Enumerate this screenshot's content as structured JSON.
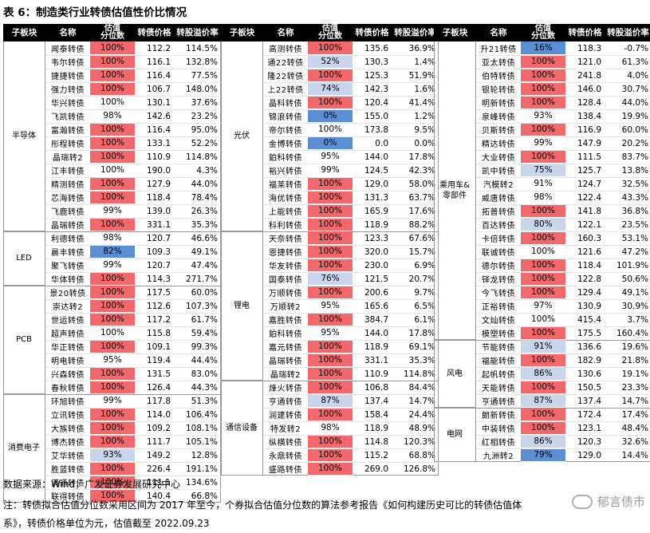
{
  "title": "表 6：制造类行业转债估值性价比情况",
  "headers": [
    "子板块",
    "名称",
    "估值\n分位数",
    "转债价格",
    "转股溢价率"
  ],
  "colors": {
    "high": "#f2686b",
    "mid": "#c9d5ec",
    "low": "#5b8fd4",
    "header_bg": "#000000"
  },
  "bands": [
    {
      "sectors": [
        {
          "name": "半导体",
          "rows": [
            {
              "name": "闻泰转债",
              "pct": "100%",
              "level": "high",
              "price": "112.2",
              "premium": "114.5%"
            },
            {
              "name": "韦尔转债",
              "pct": "100%",
              "level": "high",
              "price": "116.1",
              "premium": "132.8%"
            },
            {
              "name": "捷捷转债",
              "pct": "100%",
              "level": "high",
              "price": "116.4",
              "premium": "77.5%"
            },
            {
              "name": "强力转债",
              "pct": "100%",
              "level": "high",
              "price": "106.7",
              "premium": "148.0%"
            },
            {
              "name": "华兴转债",
              "pct": "100%",
              "level": "none",
              "price": "130.1",
              "premium": "37.6%"
            },
            {
              "name": "飞凯转债",
              "pct": "98%",
              "level": "none",
              "price": "142.6",
              "premium": "23.2%"
            },
            {
              "name": "富瀚转债",
              "pct": "100%",
              "level": "high",
              "price": "116.4",
              "premium": "95.0%"
            },
            {
              "name": "彤程转债",
              "pct": "100%",
              "level": "high",
              "price": "133.1",
              "premium": "52.2%"
            },
            {
              "name": "晶瑞转2",
              "pct": "100%",
              "level": "high",
              "price": "110.9",
              "premium": "114.8%"
            },
            {
              "name": "江丰转债",
              "pct": "100%",
              "level": "none",
              "price": "190.0",
              "premium": "4.3%"
            },
            {
              "name": "精测转债",
              "pct": "100%",
              "level": "high",
              "price": "127.9",
              "premium": "44.0%"
            },
            {
              "name": "芯海转债",
              "pct": "100%",
              "level": "high",
              "price": "118.4",
              "premium": "78.4%"
            },
            {
              "name": "飞鹿转债",
              "pct": "99%",
              "level": "none",
              "price": "139.0",
              "premium": "26.3%"
            },
            {
              "name": "晶瑞转债",
              "pct": "100%",
              "level": "high",
              "price": "331.1",
              "premium": "35.3%"
            }
          ]
        },
        {
          "name": "LED",
          "rows": [
            {
              "name": "利德转债",
              "pct": "98%",
              "level": "none",
              "price": "120.7",
              "premium": "46.6%"
            },
            {
              "name": "晨丰转债",
              "pct": "82%",
              "level": "low",
              "price": "109.3",
              "premium": "49.1%"
            },
            {
              "name": "聚飞转债",
              "pct": "99%",
              "level": "none",
              "price": "120.7",
              "premium": "47.4%"
            },
            {
              "name": "华体转债",
              "pct": "100%",
              "level": "high",
              "price": "114.3",
              "premium": "271.7%"
            }
          ]
        },
        {
          "name": "PCB",
          "rows": [
            {
              "name": "景20转债",
              "pct": "100%",
              "level": "high",
              "price": "117.5",
              "premium": "60.0%"
            },
            {
              "name": "崇达转2",
              "pct": "100%",
              "level": "high",
              "price": "112.6",
              "premium": "107.3%"
            },
            {
              "name": "世运转债",
              "pct": "100%",
              "level": "high",
              "price": "117.2",
              "premium": "61.7%"
            },
            {
              "name": "超声转债",
              "pct": "100%",
              "level": "none",
              "price": "115.8",
              "premium": "59.4%"
            },
            {
              "name": "华正转债",
              "pct": "100%",
              "level": "high",
              "price": "109.1",
              "premium": "99.3%"
            },
            {
              "name": "明电转债",
              "pct": "95%",
              "level": "none",
              "price": "119.4",
              "premium": "44.4%"
            },
            {
              "name": "兴森转债",
              "pct": "100%",
              "level": "high",
              "price": "131.5",
              "premium": "83.0%"
            },
            {
              "name": "春秋转债",
              "pct": "100%",
              "level": "high",
              "price": "126.4",
              "premium": "44.3%"
            }
          ]
        },
        {
          "name": "消费电子",
          "rows": [
            {
              "name": "环旭转债",
              "pct": "99%",
              "level": "none",
              "price": "117.8",
              "premium": "51.3%"
            },
            {
              "name": "立讯转债",
              "pct": "100%",
              "level": "high",
              "price": "114.0",
              "premium": "106.4%"
            },
            {
              "name": "大族转债",
              "pct": "100%",
              "level": "high",
              "price": "109.2",
              "premium": "108.1%"
            },
            {
              "name": "博杰转债",
              "pct": "100%",
              "level": "high",
              "price": "111.7",
              "premium": "105.1%"
            },
            {
              "name": "艾华转债",
              "pct": "93%",
              "level": "mid",
              "price": "149.2",
              "premium": "12.8%"
            },
            {
              "name": "胜蓝转债",
              "pct": "100%",
              "level": "high",
              "price": "226.4",
              "premium": "191.1%"
            },
            {
              "name": "满通转债",
              "pct": "100%",
              "level": "high",
              "price": "111.1",
              "premium": "134.6%"
            },
            {
              "name": "联得转债",
              "pct": "100%",
              "level": "high",
              "price": "140.4",
              "premium": "66.8%"
            }
          ]
        }
      ]
    },
    {
      "sectors": [
        {
          "name": "光伏",
          "rows": [
            {
              "name": "高测转债",
              "pct": "100%",
              "level": "high",
              "price": "135.6",
              "premium": "36.9%"
            },
            {
              "name": "通22转债",
              "pct": "52%",
              "level": "mid",
              "price": "130.3",
              "premium": "1.4%"
            },
            {
              "name": "隆22转债",
              "pct": "100%",
              "level": "high",
              "price": "125.3",
              "premium": "51.9%"
            },
            {
              "name": "上22转债",
              "pct": "74%",
              "level": "mid",
              "price": "142.3",
              "premium": "1.6%"
            },
            {
              "name": "晶科转债",
              "pct": "100%",
              "level": "high",
              "price": "120.4",
              "premium": "41.4%"
            },
            {
              "name": "锦浪转债",
              "pct": "0%",
              "level": "low",
              "price": "155.0",
              "premium": "1.2%"
            },
            {
              "name": "帝尔转债",
              "pct": "100%",
              "level": "none",
              "price": "173.8",
              "premium": "9.5%"
            },
            {
              "name": "金博转债",
              "pct": "0%",
              "level": "low",
              "price": "0.0",
              "premium": "0.0%"
            },
            {
              "name": "鉑科转债",
              "pct": "95%",
              "level": "none",
              "price": "144.0",
              "premium": "17.8%"
            },
            {
              "name": "裕兴转债",
              "pct": "99%",
              "level": "none",
              "price": "124.5",
              "premium": "42.3%"
            },
            {
              "name": "福莱转债",
              "pct": "100%",
              "level": "high",
              "price": "129.0",
              "premium": "58.0%"
            },
            {
              "name": "海优转债",
              "pct": "100%",
              "level": "high",
              "price": "131.3",
              "premium": "63.7%"
            },
            {
              "name": "上能转债",
              "pct": "100%",
              "level": "high",
              "price": "165.9",
              "premium": "17.6%"
            },
            {
              "name": "科利转债",
              "pct": "100%",
              "level": "high",
              "price": "118.9",
              "premium": "88.2%"
            }
          ]
        },
        {
          "name": "锂电",
          "rows": [
            {
              "name": "天奈转债",
              "pct": "100%",
              "level": "high",
              "price": "123.3",
              "premium": "67.6%"
            },
            {
              "name": "恩捷转债",
              "pct": "100%",
              "level": "high",
              "price": "320.0",
              "premium": "15.7%"
            },
            {
              "name": "华友转债",
              "pct": "100%",
              "level": "high",
              "price": "230.0",
              "premium": "6.9%"
            },
            {
              "name": "国泰转债",
              "pct": "76%",
              "level": "mid",
              "price": "121.5",
              "premium": "20.7%"
            },
            {
              "name": "万顺转债",
              "pct": "100%",
              "level": "high",
              "price": "200.6",
              "premium": "9.7%"
            },
            {
              "name": "万顺转2",
              "pct": "95%",
              "level": "none",
              "price": "165.6",
              "premium": "6.5%"
            },
            {
              "name": "嘉胜转债",
              "pct": "100%",
              "level": "high",
              "price": "384.7",
              "premium": "6.1%"
            },
            {
              "name": "鉑科转债",
              "pct": "95%",
              "level": "none",
              "price": "144.0",
              "premium": "17.8%"
            },
            {
              "name": "嘉元转债",
              "pct": "100%",
              "level": "high",
              "price": "118.9",
              "premium": "69.1%"
            },
            {
              "name": "晶瑞转债",
              "pct": "100%",
              "level": "high",
              "price": "331.1",
              "premium": "35.3%"
            },
            {
              "name": "晶瑞转2",
              "pct": "100%",
              "level": "high",
              "price": "110.9",
              "premium": "114.8%"
            }
          ]
        },
        {
          "name": "通信设备",
          "rows": [
            {
              "name": "烽火转债",
              "pct": "100%",
              "level": "high",
              "price": "106.8",
              "premium": "84.4%"
            },
            {
              "name": "亨通转债",
              "pct": "87%",
              "level": "mid",
              "price": "137.4",
              "premium": "14.7%"
            },
            {
              "name": "润建转债",
              "pct": "100%",
              "level": "high",
              "price": "158.4",
              "premium": "24.4%"
            },
            {
              "name": "特发转2",
              "pct": "98%",
              "level": "none",
              "price": "118.9",
              "premium": "48.9%"
            },
            {
              "name": "纵横转债",
              "pct": "100%",
              "level": "high",
              "price": "114.8",
              "premium": "120.3%"
            },
            {
              "name": "永鼎转债",
              "pct": "100%",
              "level": "high",
              "price": "115.2",
              "premium": "68.8%"
            },
            {
              "name": "盛路转债",
              "pct": "100%",
              "level": "high",
              "price": "269.0",
              "premium": "126.8%"
            }
          ]
        }
      ]
    },
    {
      "sectors": [
        {
          "name": "乘用车&\n零部件",
          "rows": [
            {
              "name": "升21转债",
              "pct": "16%",
              "level": "low",
              "price": "118.3",
              "premium": "-0.7%"
            },
            {
              "name": "亚太转债",
              "pct": "100%",
              "level": "high",
              "price": "121.0",
              "premium": "61.3%"
            },
            {
              "name": "伯特转债",
              "pct": "100%",
              "level": "high",
              "price": "241.8",
              "premium": "4.0%"
            },
            {
              "name": "银轮转债",
              "pct": "100%",
              "level": "high",
              "price": "146.0",
              "premium": "30.7%"
            },
            {
              "name": "明新转债",
              "pct": "100%",
              "level": "high",
              "price": "128.4",
              "premium": "44.0%"
            },
            {
              "name": "泉峰转债",
              "pct": "93%",
              "level": "none",
              "price": "138.4",
              "premium": "19.9%"
            },
            {
              "name": "贝斯转债",
              "pct": "100%",
              "level": "high",
              "price": "116.9",
              "premium": "60.0%"
            },
            {
              "name": "精达转债",
              "pct": "99%",
              "level": "none",
              "price": "147.9",
              "premium": "20.2%"
            },
            {
              "name": "大业转债",
              "pct": "100%",
              "level": "high",
              "price": "111.5",
              "premium": "83.7%"
            },
            {
              "name": "凯中转债",
              "pct": "75%",
              "level": "mid",
              "price": "125.7",
              "premium": "13.8%"
            },
            {
              "name": "汽模转2",
              "pct": "91%",
              "level": "none",
              "price": "124.7",
              "premium": "32.5%"
            },
            {
              "name": "威唐转债",
              "pct": "98%",
              "level": "none",
              "price": "122.4",
              "premium": "43.3%"
            },
            {
              "name": "拓普转债",
              "pct": "100%",
              "level": "high",
              "price": "141.8",
              "premium": "36.8%"
            },
            {
              "name": "百达转债",
              "pct": "80%",
              "level": "mid",
              "price": "122.1",
              "premium": "23.5%"
            },
            {
              "name": "卡倍转债",
              "pct": "100%",
              "level": "high",
              "price": "160.3",
              "premium": "53.1%"
            },
            {
              "name": "联诚转债",
              "pct": "100%",
              "level": "none",
              "price": "121.6",
              "premium": "47.2%"
            },
            {
              "name": "德尔转债",
              "pct": "100%",
              "level": "high",
              "price": "118.4",
              "premium": "101.9%"
            },
            {
              "name": "铎龙转债",
              "pct": "100%",
              "level": "high",
              "price": "122.8",
              "premium": "50.6%"
            },
            {
              "name": "今飞转债",
              "pct": "100%",
              "level": "high",
              "price": "129.4",
              "premium": "49.1%"
            },
            {
              "name": "正裕转债",
              "pct": "97%",
              "level": "none",
              "price": "130.9",
              "premium": "30.9%"
            },
            {
              "name": "文灿转债",
              "pct": "100%",
              "level": "none",
              "price": "415.4",
              "premium": "3.7%"
            },
            {
              "name": "模塑转债",
              "pct": "100%",
              "level": "high",
              "price": "175.5",
              "premium": "160.4%"
            }
          ]
        },
        {
          "name": "风电",
          "rows": [
            {
              "name": "节能转债",
              "pct": "91%",
              "level": "mid",
              "price": "136.6",
              "premium": "19.6%"
            },
            {
              "name": "福能转债",
              "pct": "100%",
              "level": "high",
              "price": "182.9",
              "premium": "21.8%"
            },
            {
              "name": "起帆转债",
              "pct": "86%",
              "level": "mid",
              "price": "130.6",
              "premium": "19.1%"
            },
            {
              "name": "天能转债",
              "pct": "100%",
              "level": "high",
              "price": "150.5",
              "premium": "23.3%"
            },
            {
              "name": "亨通转债",
              "pct": "87%",
              "level": "mid",
              "price": "137.4",
              "premium": "14.7%"
            }
          ]
        },
        {
          "name": "电网",
          "rows": [
            {
              "name": "朗新转债",
              "pct": "100%",
              "level": "high",
              "price": "172.4",
              "premium": "17.4%"
            },
            {
              "name": "中装转债",
              "pct": "100%",
              "level": "high",
              "price": "123.1",
              "premium": "48.4%"
            },
            {
              "name": "红相转债",
              "pct": "86%",
              "level": "mid",
              "price": "120.3",
              "premium": "32.6%"
            },
            {
              "name": "九洲转2",
              "pct": "79%",
              "level": "low",
              "price": "129.0",
              "premium": "14.4%"
            }
          ]
        }
      ]
    }
  ],
  "source": "数据来源：Wind，广发证券发展研究中心",
  "note1": "注：转债拟合估值分位数采用区间为 2017 年至今，个券拟合估值分位数的算法参考报告《如何构建历史可比的转债估值体",
  "note2": "系》，转债价格单位为元，估值截至 2022.09.23",
  "watermark": "郁言债市"
}
